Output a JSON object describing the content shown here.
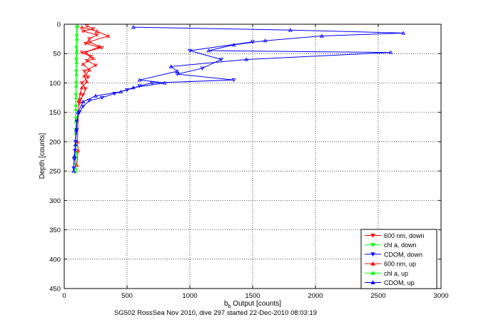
{
  "chart_data": {
    "type": "scatter",
    "title": "",
    "caption": "SG502 RossSea Nov 2010, dive 297 started 22-Dec-2010 08:03:19",
    "xlabel_main": "b",
    "xlabel_sub": "b",
    "xlabel_rest": " Output [counts]",
    "ylabel": "Depth [counts]",
    "xlim": [
      0,
      3000
    ],
    "ylim": [
      0,
      450
    ],
    "y_reversed": true,
    "grid": true,
    "legend_position": "bottom-right",
    "x_ticks": [
      0,
      500,
      1000,
      1500,
      2000,
      2500,
      3000
    ],
    "y_ticks": [
      0,
      50,
      100,
      150,
      200,
      250,
      300,
      350,
      400,
      450
    ],
    "series": [
      {
        "name": "600 nm, down",
        "color": "#ff0000",
        "marker": "triangle-down",
        "points": [
          [
            180,
            3
          ],
          [
            230,
            8
          ],
          [
            150,
            12
          ],
          [
            260,
            18
          ],
          [
            200,
            25
          ],
          [
            170,
            33
          ],
          [
            300,
            40
          ],
          [
            140,
            48
          ],
          [
            210,
            55
          ],
          [
            180,
            62
          ],
          [
            250,
            70
          ],
          [
            160,
            80
          ],
          [
            190,
            90
          ],
          [
            140,
            100
          ],
          [
            170,
            110
          ],
          [
            150,
            120
          ],
          [
            130,
            128
          ],
          [
            120,
            135
          ]
        ]
      },
      {
        "name": "chl a, down",
        "color": "#00ff00",
        "marker": "triangle-down",
        "points": [
          [
            100,
            5
          ],
          [
            98,
            20
          ],
          [
            96,
            40
          ],
          [
            95,
            60
          ],
          [
            95,
            80
          ],
          [
            94,
            100
          ],
          [
            93,
            120
          ],
          [
            92,
            140
          ],
          [
            92,
            160
          ],
          [
            92,
            180
          ],
          [
            92,
            200
          ],
          [
            93,
            220
          ],
          [
            92,
            240
          ],
          [
            90,
            252
          ]
        ]
      },
      {
        "name": "CDOM, down",
        "color": "#0000ff",
        "marker": "triangle-down",
        "points": [
          [
            1500,
            30
          ],
          [
            1000,
            45
          ],
          [
            1250,
            60
          ],
          [
            1100,
            75
          ],
          [
            900,
            85
          ],
          [
            1350,
            95
          ],
          [
            700,
            100
          ],
          [
            600,
            105
          ],
          [
            500,
            112
          ],
          [
            400,
            118
          ],
          [
            300,
            125
          ],
          [
            200,
            130
          ],
          [
            150,
            140
          ],
          [
            120,
            150
          ],
          [
            100,
            165
          ],
          [
            100,
            180
          ],
          [
            90,
            200
          ],
          [
            85,
            215
          ],
          [
            80,
            230
          ],
          [
            75,
            245
          ]
        ]
      },
      {
        "name": "600 nm, up",
        "color": "#ff0000",
        "marker": "triangle-up",
        "points": [
          [
            140,
            5
          ],
          [
            260,
            12
          ],
          [
            350,
            20
          ],
          [
            200,
            30
          ],
          [
            280,
            38
          ],
          [
            170,
            48
          ],
          [
            230,
            58
          ],
          [
            150,
            68
          ],
          [
            200,
            78
          ],
          [
            160,
            88
          ],
          [
            180,
            98
          ],
          [
            140,
            108
          ],
          [
            130,
            118
          ],
          [
            115,
            130
          ],
          [
            105,
            200
          ],
          [
            110,
            215
          ],
          [
            100,
            240
          ]
        ]
      },
      {
        "name": "chl a, up",
        "color": "#00ff00",
        "marker": "triangle-up",
        "points": [
          [
            105,
            3
          ],
          [
            102,
            25
          ],
          [
            100,
            45
          ],
          [
            98,
            65
          ],
          [
            97,
            85
          ],
          [
            96,
            105
          ],
          [
            95,
            125
          ],
          [
            93,
            145
          ],
          [
            92,
            165
          ],
          [
            92,
            185
          ],
          [
            91,
            205
          ],
          [
            90,
            225
          ],
          [
            89,
            245
          ]
        ]
      },
      {
        "name": "CDOM, up",
        "color": "#0000ff",
        "marker": "triangle-up",
        "points": [
          [
            550,
            5
          ],
          [
            1800,
            10
          ],
          [
            2700,
            15
          ],
          [
            2050,
            20
          ],
          [
            1600,
            28
          ],
          [
            1350,
            35
          ],
          [
            1150,
            45
          ],
          [
            2600,
            48
          ],
          [
            1450,
            60
          ],
          [
            850,
            72
          ],
          [
            900,
            80
          ],
          [
            600,
            95
          ],
          [
            800,
            100
          ],
          [
            550,
            108
          ],
          [
            450,
            115
          ],
          [
            250,
            122
          ],
          [
            150,
            132
          ],
          [
            110,
            150
          ],
          [
            95,
            180
          ],
          [
            90,
            205
          ],
          [
            80,
            225
          ],
          [
            75,
            250
          ]
        ]
      }
    ]
  }
}
